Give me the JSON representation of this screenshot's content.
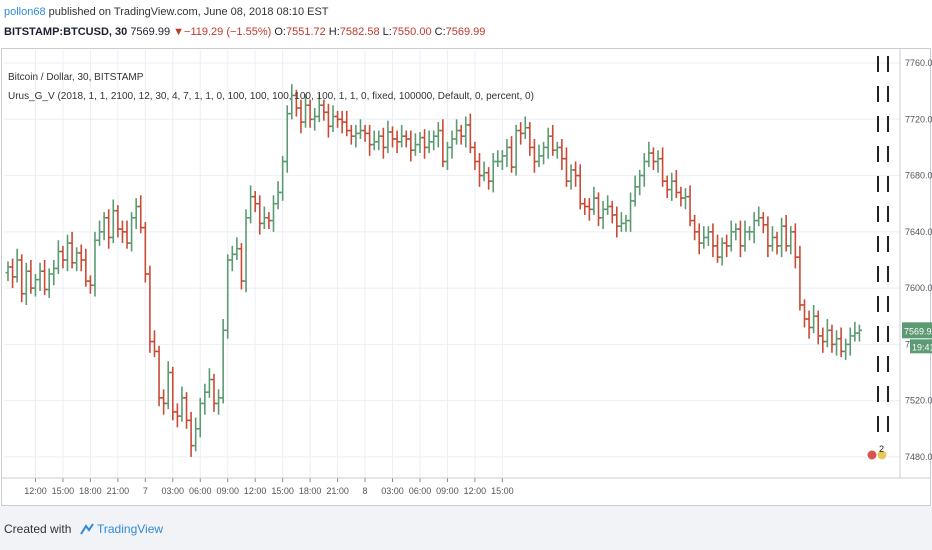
{
  "header": {
    "publisher": "pollon68",
    "published_text": " published on TradingView.com, June 08, 2018 08:10 EST",
    "symbol": "BITSTAMP:BTCUSD, 30",
    "last": "7569.99",
    "change": "▼−119.29 (−1.55%)",
    "o_label": "O:",
    "o": "7551.72",
    "h_label": "H:",
    "h": "7582.58",
    "l_label": "L:",
    "l": "7550.00",
    "c_label": "C:",
    "c": "7569.99"
  },
  "legend": {
    "title": "Bitcoin / Dollar, 30, BITSTAMP",
    "indicator": "Urus_G_V (2018, 1, 1, 2100, 12, 30, 4, 7, 1, 1, 0, 100, 100, 100, 100, 100, 1, 1, 0, fixed, 100000, Default, 0, percent, 0)"
  },
  "footer": {
    "created_with": "Created with",
    "brand": "TradingView"
  },
  "colors": {
    "up": "#5b9a72",
    "down": "#c94a35",
    "grid": "#eceef2",
    "axis_text": "#555555",
    "price_badge": "#5b9a72"
  },
  "chart_data": {
    "type": "candlestick",
    "ylim": [
      7465,
      7765
    ],
    "yticks": [
      "7760.00",
      "7720.00",
      "7680.00",
      "7640.00",
      "7600.00",
      "7560.00",
      "7520.00",
      "7480.00"
    ],
    "yticks_values": [
      7760,
      7720,
      7680,
      7640,
      7600,
      7560,
      7520,
      7480
    ],
    "xticks": [
      "12:00",
      "15:00",
      "18:00",
      "21:00",
      "7",
      "03:00",
      "06:00",
      "09:00",
      "12:00",
      "15:00",
      "18:00",
      "21:00",
      "8",
      "03:00",
      "06:00",
      "09:00",
      "12:00",
      "15:00"
    ],
    "last_price": "7569.99",
    "countdown": "19:41",
    "event_flag": "2",
    "closes": [
      7615,
      7608,
      7620,
      7596,
      7612,
      7600,
      7606,
      7612,
      7599,
      7610,
      7614,
      7626,
      7620,
      7632,
      7618,
      7625,
      7620,
      7605,
      7602,
      7634,
      7640,
      7650,
      7636,
      7655,
      7642,
      7640,
      7632,
      7650,
      7658,
      7643,
      7610,
      7562,
      7555,
      7522,
      7518,
      7540,
      7512,
      7509,
      7522,
      7506,
      7488,
      7500,
      7518,
      7526,
      7535,
      7518,
      7522,
      7570,
      7620,
      7624,
      7628,
      7605,
      7650,
      7665,
      7660,
      7646,
      7650,
      7648,
      7660,
      7668,
      7690,
      7724,
      7737,
      7728,
      7718,
      7730,
      7720,
      7722,
      7730,
      7725,
      7715,
      7722,
      7720,
      7718,
      7712,
      7708,
      7710,
      7712,
      7710,
      7702,
      7704,
      7708,
      7700,
      7711,
      7706,
      7704,
      7708,
      7706,
      7698,
      7702,
      7707,
      7700,
      7704,
      7708,
      7712,
      7690,
      7700,
      7706,
      7712,
      7708,
      7716,
      7700,
      7690,
      7680,
      7682,
      7676,
      7690,
      7690,
      7694,
      7700,
      7686,
      7712,
      7710,
      7714,
      7700,
      7690,
      7694,
      7700,
      7708,
      7698,
      7700,
      7692,
      7676,
      7684,
      7680,
      7660,
      7658,
      7656,
      7664,
      7650,
      7656,
      7658,
      7652,
      7644,
      7646,
      7648,
      7662,
      7672,
      7680,
      7690,
      7696,
      7690,
      7692,
      7676,
      7670,
      7676,
      7668,
      7664,
      7665,
      7648,
      7640,
      7632,
      7636,
      7640,
      7630,
      7622,
      7632,
      7630,
      7640,
      7642,
      7630,
      7640,
      7640,
      7648,
      7650,
      7645,
      7630,
      7636,
      7630,
      7644,
      7630,
      7640,
      7622,
      7588,
      7578,
      7572,
      7580,
      7566,
      7562,
      7570,
      7560,
      7564,
      7555,
      7560,
      7566,
      7568,
      7570
    ]
  }
}
